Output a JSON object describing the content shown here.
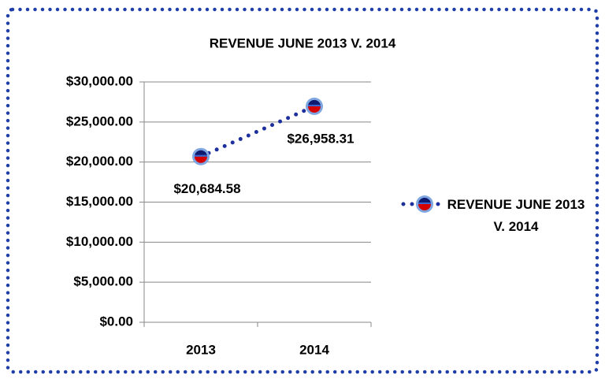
{
  "chart_data": {
    "type": "line",
    "title": "REVENUE JUNE 2013 V. 2014",
    "categories": [
      "2013",
      "2014"
    ],
    "series": [
      {
        "name": "REVENUE JUNE 2013 V. 2014",
        "color": "#1c2f9c",
        "values": [
          20684.58,
          26958.31
        ],
        "value_labels": [
          "$20,684.58",
          "$26,958.31"
        ]
      }
    ],
    "ylim": [
      0,
      30000
    ],
    "yticks": [
      {
        "value": 0,
        "label": "$0.00"
      },
      {
        "value": 5000,
        "label": "$5,000.00"
      },
      {
        "value": 10000,
        "label": "$10,000.00"
      },
      {
        "value": 15000,
        "label": "$15,000.00"
      },
      {
        "value": 20000,
        "label": "$20,000.00"
      },
      {
        "value": 25000,
        "label": "$25,000.00"
      },
      {
        "value": 30000,
        "label": "$30,000.00"
      }
    ],
    "grid": true,
    "legend": "right"
  }
}
